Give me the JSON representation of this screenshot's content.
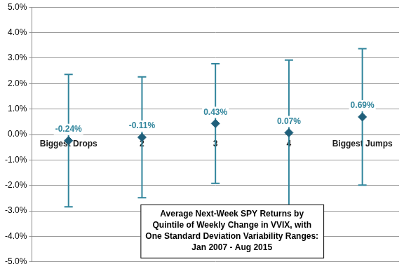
{
  "chart_data": {
    "type": "scatter",
    "title": [
      "Average Next-Week SPY Returns by",
      "Quintile of Weekly Change in VVIX, with",
      "One Standard Deviation Variability Ranges:",
      "Jan 2007 - Aug 2015"
    ],
    "categories": [
      "Biggest Drops",
      "2",
      "3",
      "4",
      "Biggest Jumps"
    ],
    "values": [
      -0.24,
      -0.11,
      0.43,
      0.07,
      0.69
    ],
    "value_labels": [
      "-0.24%",
      "-0.11%",
      "0.43%",
      "0.07%",
      "0.69%"
    ],
    "error": [
      2.6,
      2.37,
      2.35,
      2.85,
      2.68
    ],
    "color": "#1f5f7a",
    "marker": "diamond",
    "line_style": "none",
    "data_labels": true,
    "ylim": [
      -5,
      5
    ],
    "yticks": [
      {
        "value": -5,
        "label": "-5.0%"
      },
      {
        "value": -4,
        "label": "-4.0%"
      },
      {
        "value": -3,
        "label": "-3.0%"
      },
      {
        "value": -2,
        "label": "-2.0%"
      },
      {
        "value": -1,
        "label": "-1.0%"
      },
      {
        "value": 0,
        "label": "0.0%"
      },
      {
        "value": 1,
        "label": "1.0%"
      },
      {
        "value": 2,
        "label": "2.0%"
      },
      {
        "value": 3,
        "label": "3.0%"
      },
      {
        "value": 4,
        "label": "4.0%"
      },
      {
        "value": 5,
        "label": "5.0%"
      }
    ],
    "grid": true,
    "legend": false
  }
}
